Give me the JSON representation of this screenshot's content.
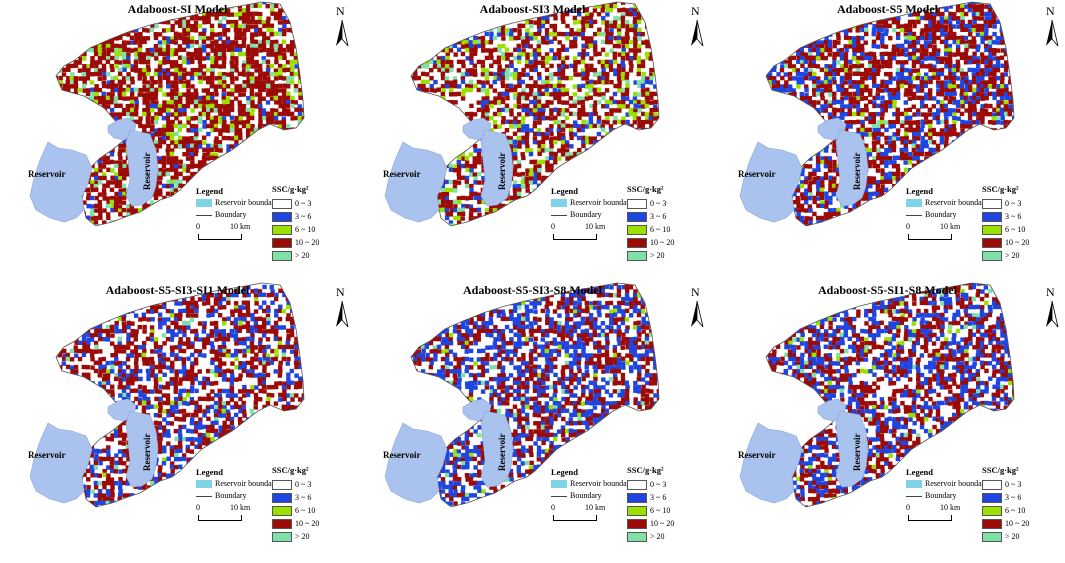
{
  "panels": [
    {
      "title": "Adaboost-SI Model",
      "weights": [
        0.3,
        0.04,
        0.07,
        0.52,
        0.07
      ]
    },
    {
      "title": "Adaboost-SI3 Model",
      "weights": [
        0.38,
        0.1,
        0.1,
        0.37,
        0.05
      ]
    },
    {
      "title": "Adaboost-S5 Model",
      "weights": [
        0.3,
        0.25,
        0.03,
        0.4,
        0.02
      ]
    },
    {
      "title": "Adaboost-S5-SI3-SI1 Model",
      "weights": [
        0.42,
        0.2,
        0.02,
        0.34,
        0.02
      ]
    },
    {
      "title": "Adaboost-S5-SI3-S8 Model",
      "weights": [
        0.38,
        0.32,
        0.02,
        0.26,
        0.02
      ]
    },
    {
      "title": "Adaboost-S5-SI1-S8 Model",
      "weights": [
        0.38,
        0.26,
        0.03,
        0.31,
        0.02
      ]
    }
  ],
  "north_label": "N",
  "reservoir_label": "Reservoir",
  "legend": {
    "title": "Legend",
    "reservoir_boundary": "Reservoir boundary",
    "boundary": "Boundary",
    "reservoir_color": "#7fd3e6"
  },
  "scale": {
    "zero": "0",
    "km": "10  km"
  },
  "ssc": {
    "title": "SSC/g·kg²",
    "classes": [
      {
        "label": "0 ~ 3",
        "color": "#ffffff"
      },
      {
        "label": "3 ~ 6",
        "color": "#1f45e0"
      },
      {
        "label": "6 ~ 10",
        "color": "#9be000"
      },
      {
        "label": "10 ~ 20",
        "color": "#9c0a06"
      },
      {
        "label": "> 20",
        "color": "#7fe0a8"
      }
    ]
  },
  "colors": {
    "water": "#a9c3ee",
    "boundary": "#555555"
  }
}
